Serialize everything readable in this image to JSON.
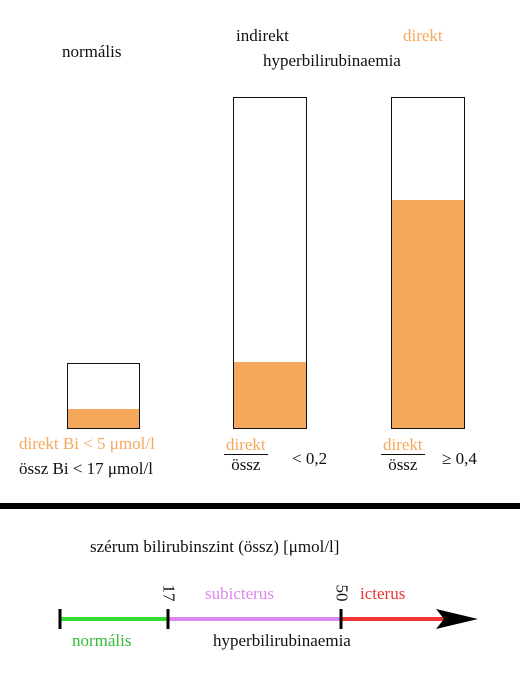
{
  "columns": {
    "normal": {
      "title": "normális",
      "fill_fraction": 0.3,
      "line1": "direkt Bi < 5 μmol/l",
      "line2": "össz Bi < 17 μmol/l"
    },
    "indirect": {
      "title1": "indirekt",
      "fill_fraction": 0.2,
      "num": "direkt",
      "den": "össz",
      "rel": "< 0,2"
    },
    "direct": {
      "title1": "direkt",
      "fill_fraction": 0.69,
      "num": "direkt",
      "den": "össz",
      "rel": "≥ 0,4"
    },
    "shared_title": "hyperbilirubinaemia"
  },
  "scale": {
    "title": "szérum bilirubinszint (össz) [μmol/l]",
    "tick1": "17",
    "tick2": "50",
    "zone_normal": "normális",
    "zone_sub": "subicterus",
    "zone_ict": "icterus",
    "zone_hyper": "hyperbilirubinaemia"
  },
  "colors": {
    "orange": "#f5a85b",
    "green": "#33dd33",
    "violet": "#dd88ee",
    "red": "#ee3333",
    "black": "#111111"
  }
}
